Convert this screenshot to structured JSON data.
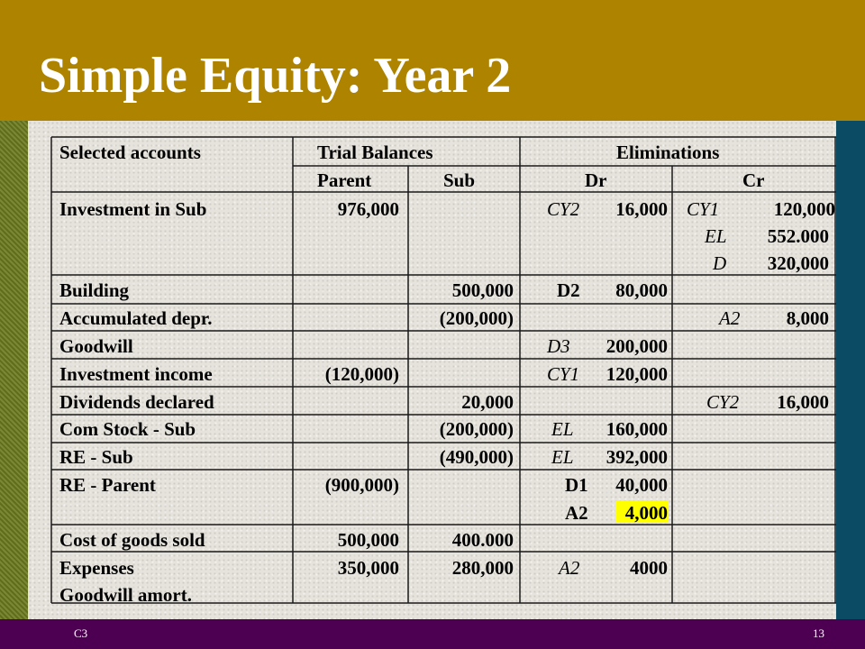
{
  "slide": {
    "title": "Simple Equity: Year 2",
    "footer_left": "C3",
    "footer_right": "13",
    "colors": {
      "header": "#ad8300",
      "footer": "#4d0051",
      "left_bar": "#6b7a1f",
      "right_bar": "#0b4b63",
      "highlight": "#ffff00"
    }
  },
  "table": {
    "headers": {
      "selected_accounts": "Selected accounts",
      "trial_balances": "Trial Balances",
      "eliminations": "Eliminations",
      "parent": "Parent",
      "sub": "Sub",
      "dr": "Dr",
      "cr": "Cr"
    },
    "rows": [
      {
        "account": "Investment in Sub",
        "parent": "976,000",
        "dr_code": "CY2",
        "dr_amount": "16,000",
        "cr": [
          {
            "code": "CY1",
            "amount": "120,000"
          },
          {
            "code": "EL",
            "amount": "552.000"
          },
          {
            "code": "D",
            "amount": "320,000"
          }
        ]
      },
      {
        "account": "Building",
        "sub": "500,000",
        "dr_code": "D2",
        "dr_amount": "80,000"
      },
      {
        "account": "Accumulated depr.",
        "sub": "(200,000)",
        "cr_code": "A2",
        "cr_amount": "8,000"
      },
      {
        "account": "Goodwill",
        "dr_code": "D3",
        "dr_amount": "200,000"
      },
      {
        "account": "Investment income",
        "parent": "(120,000)",
        "dr_code": "CY1",
        "dr_amount": "120,000"
      },
      {
        "account": "Dividends declared",
        "sub": "20,000",
        "cr_code": "CY2",
        "cr_amount": "16,000"
      },
      {
        "account": "Com Stock - Sub",
        "sub": "(200,000)",
        "dr_code": "EL",
        "dr_amount": "160,000"
      },
      {
        "account": "RE - Sub",
        "sub": "(490,000)",
        "dr_code": "EL",
        "dr_amount": "392,000"
      },
      {
        "account": "RE - Parent",
        "parent": "(900,000)",
        "dr": [
          {
            "code": "D1",
            "amount": "40,000"
          },
          {
            "code": "A2",
            "amount": "4,000",
            "highlighted": true
          }
        ]
      },
      {
        "account": "Cost of goods sold",
        "parent": "500,000",
        "sub": "400.000"
      },
      {
        "account": "Expenses",
        "account_line2": "Goodwill amort.",
        "parent": "350,000",
        "sub": "280,000",
        "dr_code": "A2",
        "dr_amount": "4000"
      }
    ]
  }
}
